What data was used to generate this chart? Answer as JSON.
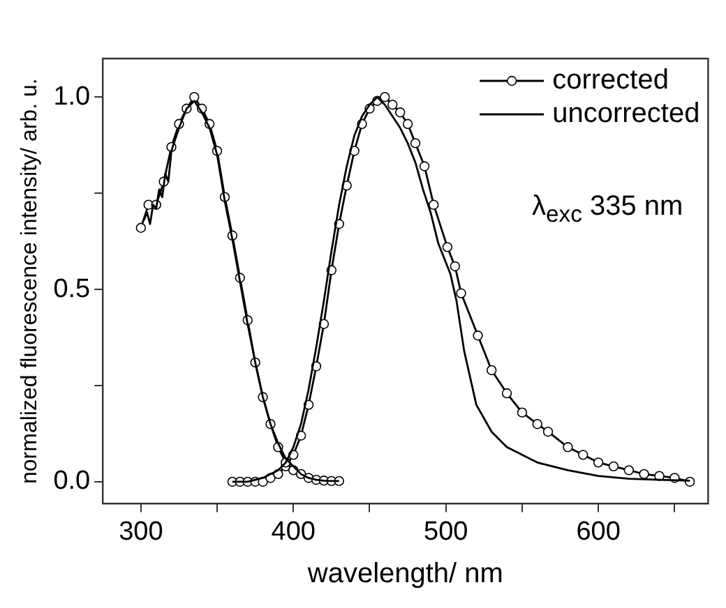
{
  "chart_data": {
    "type": "line",
    "xlabel": "wavelength/ nm",
    "ylabel": "normalized fluorescence intensity/ arb. u.",
    "xlim": [
      275,
      672
    ],
    "ylim": [
      -0.057,
      1.1
    ],
    "xticks": [
      300,
      {
        "value": 350,
        "label": null
      },
      400,
      {
        "value": 450,
        "label": null
      },
      500,
      {
        "value": 550,
        "label": null
      },
      600,
      {
        "value": 650,
        "label": null
      }
    ],
    "yticks": [
      {
        "value": 0,
        "label": "0.0"
      },
      {
        "value": 0.25,
        "label": null
      },
      {
        "value": 0.5,
        "label": "0.5"
      },
      {
        "value": 0.75,
        "label": null
      },
      {
        "value": 1,
        "label": "1.0"
      }
    ],
    "grid": false,
    "legend": "top right",
    "annotations": [
      "λ$_{exc}$ 335 nm"
    ],
    "series": [
      {
        "name": "corrected",
        "color": "#000000",
        "marker": "circle",
        "x": [
          300,
          305,
          310,
          315,
          320,
          325,
          330,
          335,
          340,
          345,
          350,
          355,
          360,
          365,
          370,
          375,
          380,
          385,
          390,
          395,
          400,
          405,
          410,
          415,
          420,
          425,
          430
        ],
        "values": [
          0.66,
          0.72,
          0.72,
          0.78,
          0.87,
          0.93,
          0.97,
          1.0,
          0.97,
          0.93,
          0.86,
          0.74,
          0.64,
          0.53,
          0.42,
          0.31,
          0.22,
          0.15,
          0.09,
          0.05,
          0.03,
          0.02,
          0.01,
          0.005,
          0.003,
          0.002,
          0.002
        ]
      },
      {
        "name": "uncorrected",
        "color": "#000000",
        "marker": "none",
        "x": [
          302,
          304,
          306,
          308,
          310,
          312,
          314,
          316,
          318,
          320,
          325,
          330,
          335,
          340,
          345,
          350,
          355,
          360,
          365,
          370,
          375,
          380,
          385,
          390,
          395,
          400,
          405,
          410,
          415,
          420,
          425,
          430
        ],
        "values": [
          0.68,
          0.7,
          0.67,
          0.72,
          0.71,
          0.76,
          0.74,
          0.8,
          0.78,
          0.86,
          0.92,
          0.97,
          0.99,
          0.96,
          0.92,
          0.85,
          0.73,
          0.63,
          0.52,
          0.41,
          0.31,
          0.22,
          0.15,
          0.1,
          0.06,
          0.04,
          0.02,
          0.01,
          0.005,
          0.003,
          0.002,
          0.002
        ]
      },
      {
        "color": "#000000",
        "marker": "circle",
        "x": [
          360,
          365,
          370,
          375,
          380,
          385,
          390,
          395,
          400,
          405,
          410,
          415,
          420,
          425,
          430,
          435,
          440,
          445,
          450,
          455,
          460,
          465,
          470,
          475,
          480,
          486,
          492,
          501,
          506,
          510,
          521,
          530,
          540,
          550,
          560,
          567,
          580,
          590,
          600,
          610,
          620,
          630,
          640,
          650,
          660
        ],
        "values": [
          0,
          0,
          0,
          0,
          0,
          0.01,
          0.02,
          0.04,
          0.07,
          0.12,
          0.2,
          0.3,
          0.41,
          0.55,
          0.67,
          0.77,
          0.86,
          0.93,
          0.97,
          0.99,
          1.0,
          0.98,
          0.96,
          0.93,
          0.88,
          0.82,
          0.72,
          0.61,
          0.56,
          0.49,
          0.38,
          0.29,
          0.23,
          0.18,
          0.15,
          0.13,
          0.09,
          0.07,
          0.05,
          0.04,
          0.03,
          0.02,
          0.015,
          0.01,
          0
        ]
      },
      {
        "color": "#000000",
        "marker": "none",
        "x": [
          360,
          370,
          380,
          385,
          390,
          395,
          400,
          405,
          410,
          415,
          420,
          425,
          430,
          435,
          440,
          445,
          450,
          455,
          460,
          465,
          470,
          475,
          480,
          485,
          490,
          495,
          500,
          503,
          507,
          512,
          520,
          530,
          540,
          550,
          560,
          580,
          600,
          620,
          640,
          660
        ],
        "values": [
          0,
          0,
          0.01,
          0.02,
          0.03,
          0.05,
          0.09,
          0.15,
          0.24,
          0.35,
          0.47,
          0.6,
          0.72,
          0.82,
          0.9,
          0.95,
          0.98,
          1.0,
          0.98,
          0.95,
          0.92,
          0.88,
          0.83,
          0.76,
          0.7,
          0.62,
          0.57,
          0.54,
          0.47,
          0.34,
          0.2,
          0.13,
          0.09,
          0.07,
          0.05,
          0.03,
          0.015,
          0.008,
          0.005,
          0.003
        ]
      }
    ]
  }
}
